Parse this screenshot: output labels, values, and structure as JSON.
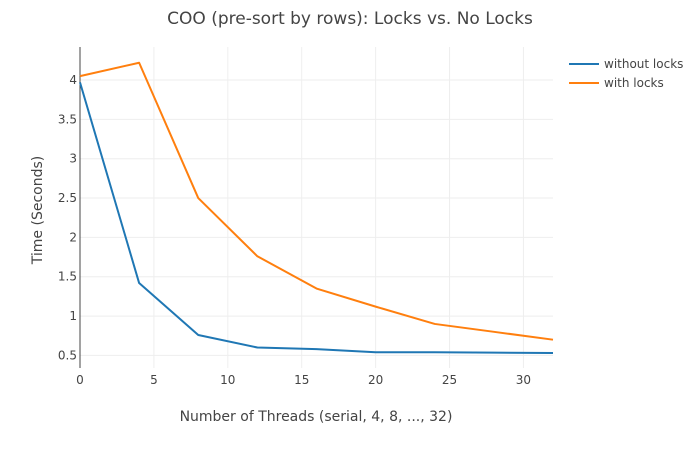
{
  "chart_data": {
    "type": "line",
    "title": "COO (pre-sort by rows): Locks vs. No Locks",
    "xlabel": "Number of Threads (serial, 4, 8, ..., 32)",
    "ylabel": "Time (Seconds)",
    "xlim": [
      0,
      32
    ],
    "ylim": [
      0.34,
      4.42
    ],
    "xticks": [
      0,
      5,
      10,
      15,
      20,
      25,
      30
    ],
    "yticks": [
      0.5,
      1,
      1.5,
      2,
      2.5,
      3,
      3.5,
      4
    ],
    "x": [
      0,
      4,
      8,
      12,
      16,
      20,
      24,
      28,
      32
    ],
    "grid": true,
    "legend_position": "top-right",
    "series": [
      {
        "name": "without locks",
        "color": "#1f77b4",
        "values": [
          3.97,
          1.42,
          0.76,
          0.6,
          0.58,
          0.54,
          0.54,
          0.535,
          0.53
        ]
      },
      {
        "name": "with locks",
        "color": "#ff7f0e",
        "values": [
          4.05,
          4.22,
          2.5,
          1.76,
          1.35,
          1.12,
          0.9,
          0.8,
          0.7
        ]
      }
    ]
  }
}
